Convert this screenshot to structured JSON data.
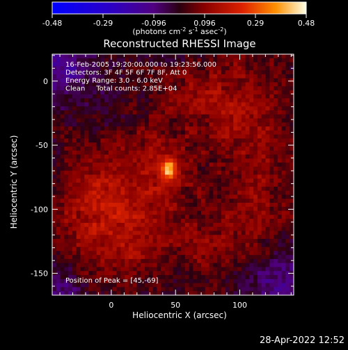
{
  "chart_data": {
    "type": "heatmap",
    "title": "Reconstructed RHESSI Image",
    "xlabel": "Heliocentric X (arcsec)",
    "ylabel": "Heliocentric Y (arcsec)",
    "xlim": [
      -46,
      142
    ],
    "ylim": [
      -167,
      21
    ],
    "xticks": [
      0,
      50,
      100
    ],
    "yticks": [
      0,
      -50,
      -100,
      -150
    ],
    "grid": false,
    "colorbar": {
      "position": "top",
      "range": [
        -0.48,
        0.48
      ],
      "ticks": [
        "-0.48",
        "-0.29",
        "-0.096",
        "0.096",
        "0.29",
        "0.48"
      ],
      "label_prefix": "(photons cm",
      "label_exp1": "-2",
      "label_mid": " s",
      "label_exp2": "-1",
      "label_mid2": " asec",
      "label_exp3": "-2",
      "label_suffix": ")"
    },
    "annotations": [
      "16-Feb-2005 19:20:00.000 to 19:23:56.000",
      "Detectors: 3F 4F 5F 6F 7F 8F, Att 0",
      "Energy Range: 3.0 - 6.0 keV",
      "Clean     Total counts: 2.85E+04"
    ],
    "peak_label": "Position of Peak = [45,-69]",
    "peak": {
      "x": 45,
      "y": -69,
      "value": 0.48
    },
    "sources": [
      {
        "x": 45,
        "y": -69,
        "sx": 5,
        "sy": 6,
        "amp": 0.3
      },
      {
        "x": 35,
        "y": -65,
        "sx": 22,
        "sy": 22,
        "amp": 0.1
      },
      {
        "x": 10,
        "y": -100,
        "sx": 28,
        "sy": 24,
        "amp": 0.12
      },
      {
        "x": -20,
        "y": -95,
        "sx": 20,
        "sy": 30,
        "amp": 0.09
      },
      {
        "x": 100,
        "y": -20,
        "sx": 26,
        "sy": 30,
        "amp": 0.11
      },
      {
        "x": 115,
        "y": -90,
        "sx": 20,
        "sy": 35,
        "amp": 0.08
      },
      {
        "x": 75,
        "y": -125,
        "sx": 28,
        "sy": 20,
        "amp": 0.08
      },
      {
        "x": 5,
        "y": -140,
        "sx": 22,
        "sy": 14,
        "amp": 0.08
      },
      {
        "x": 60,
        "y": -10,
        "sx": 20,
        "sy": 14,
        "amp": 0.07
      },
      {
        "x": -35,
        "y": 10,
        "sx": 18,
        "sy": 14,
        "amp": -0.12
      },
      {
        "x": 130,
        "y": -160,
        "sx": 18,
        "sy": 20,
        "amp": -0.12
      },
      {
        "x": -40,
        "y": -160,
        "sx": 14,
        "sy": 16,
        "amp": -0.08
      }
    ]
  },
  "timestamp": "28-Apr-2022 12:52"
}
